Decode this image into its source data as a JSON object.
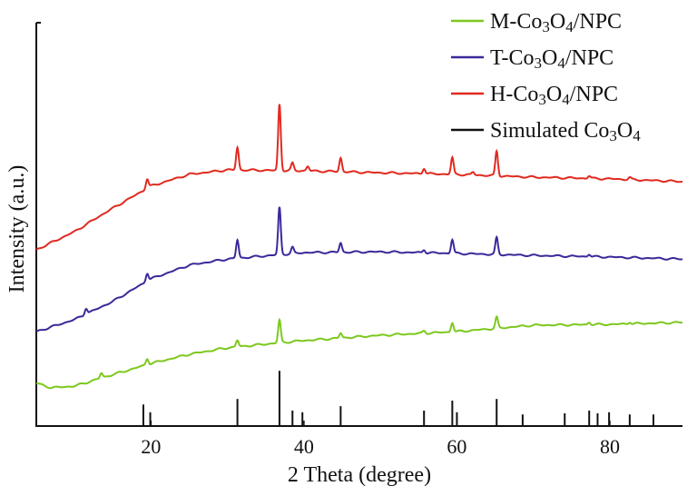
{
  "chart_data": {
    "type": "line",
    "title": "",
    "xlabel": "2 Theta (degree)",
    "ylabel": "Intensity (a.u.)",
    "xlim": [
      5,
      89.5
    ],
    "ylim": [
      0,
      100
    ],
    "xticks": [
      20,
      40,
      60,
      80
    ],
    "yticks": [],
    "grid": false,
    "legend_position": "top-right",
    "series": [
      {
        "name": "M-Co3O4/NPC",
        "name_parts": [
          "M-Co",
          "3",
          "O",
          "4",
          "/NPC"
        ],
        "color": "#7dc81f",
        "baseline": [
          [
            5,
            10.6
          ],
          [
            7,
            9.5
          ],
          [
            10,
            9.9
          ],
          [
            14,
            12.2
          ],
          [
            20,
            15.5
          ],
          [
            25,
            17.8
          ],
          [
            30,
            19.4
          ],
          [
            36,
            20.5
          ],
          [
            40,
            21.2
          ],
          [
            50,
            22.5
          ],
          [
            60,
            23.4
          ],
          [
            70,
            25
          ],
          [
            80,
            25.2
          ],
          [
            89.5,
            25.7
          ]
        ],
        "peaks": [
          [
            13.5,
            1.2
          ],
          [
            19.5,
            1.5
          ],
          [
            31.3,
            1.6
          ],
          [
            36.8,
            5.6
          ],
          [
            44.8,
            1.2
          ],
          [
            55.7,
            0.6
          ],
          [
            59.4,
            2.3
          ],
          [
            65.2,
            2.7
          ],
          [
            77.3,
            0.6
          ],
          [
            82.6,
            0.5
          ]
        ]
      },
      {
        "name": "T-Co3O4/NPC",
        "name_parts": [
          "T-Co",
          "3",
          "O",
          "4",
          "/NPC"
        ],
        "color": "#3a2a9a",
        "baseline": [
          [
            5,
            23.4
          ],
          [
            10,
            26.4
          ],
          [
            15,
            30.9
          ],
          [
            20,
            36.5
          ],
          [
            25,
            39.9
          ],
          [
            30,
            41.4
          ],
          [
            40,
            43
          ],
          [
            50,
            43.2
          ],
          [
            60,
            42.8
          ],
          [
            70,
            42.3
          ],
          [
            80,
            41.9
          ],
          [
            89.5,
            41.4
          ]
        ],
        "peaks": [
          [
            11.5,
            1.5
          ],
          [
            19.5,
            2
          ],
          [
            31.3,
            4.5
          ],
          [
            36.8,
            11.7
          ],
          [
            38.5,
            1.5
          ],
          [
            44.8,
            2.3
          ],
          [
            55.7,
            0.8
          ],
          [
            59.4,
            3.4
          ],
          [
            65.2,
            4.1
          ],
          [
            77.3,
            0.6
          ]
        ]
      },
      {
        "name": "H-Co3O4/NPC",
        "name_parts": [
          "H-Co",
          "3",
          "O",
          "4",
          "/NPC"
        ],
        "color": "#e02a20",
        "baseline": [
          [
            5,
            43.7
          ],
          [
            10,
            48.2
          ],
          [
            14,
            52.9
          ],
          [
            20,
            59.5
          ],
          [
            25,
            62.4
          ],
          [
            30,
            63.5
          ],
          [
            40,
            63.3
          ],
          [
            50,
            62.8
          ],
          [
            60,
            62.4
          ],
          [
            70,
            61.7
          ],
          [
            80,
            61.3
          ],
          [
            89.5,
            60.6
          ]
        ],
        "peaks": [
          [
            19.5,
            2.3
          ],
          [
            31.3,
            5.6
          ],
          [
            36.8,
            16.4
          ],
          [
            38.5,
            1.8
          ],
          [
            40.5,
            1.1
          ],
          [
            44.8,
            3.4
          ],
          [
            55.7,
            1.4
          ],
          [
            59.4,
            4.1
          ],
          [
            62.1,
            0.7
          ],
          [
            65.2,
            6.1
          ],
          [
            77.3,
            0.6
          ],
          [
            82.6,
            0.5
          ]
        ]
      },
      {
        "name": "Simulated Co3O4",
        "name_parts": [
          "Simulated Co",
          "3",
          "O",
          "4",
          ""
        ],
        "color": "#111111",
        "type": "stick",
        "max_height": 13.7,
        "sticks": [
          [
            19.0,
            39
          ],
          [
            19.9,
            25
          ],
          [
            31.3,
            49
          ],
          [
            36.8,
            100
          ],
          [
            38.5,
            28
          ],
          [
            39.8,
            25
          ],
          [
            44.8,
            36
          ],
          [
            55.7,
            28
          ],
          [
            59.4,
            46
          ],
          [
            60.0,
            25
          ],
          [
            65.2,
            49
          ],
          [
            68.6,
            21
          ],
          [
            74.1,
            23
          ],
          [
            77.3,
            28
          ],
          [
            78.4,
            23
          ],
          [
            79.9,
            25
          ],
          [
            82.6,
            21
          ],
          [
            85.7,
            21
          ]
        ]
      }
    ]
  }
}
